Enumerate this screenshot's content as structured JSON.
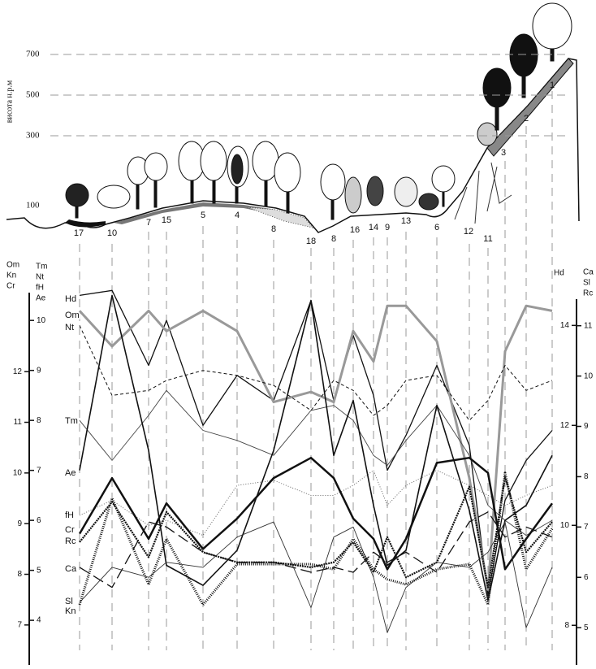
{
  "chart_data": {
    "type": "line",
    "elevation": {
      "label": "висота н.р.м",
      "ticks": [
        700,
        500,
        300,
        100
      ]
    },
    "categories": [
      "17",
      "10",
      "7",
      "15",
      "5",
      "4",
      "8",
      "18",
      "8",
      "16",
      "14",
      "9",
      "13",
      "6",
      "12",
      "11",
      "3",
      "2",
      "1"
    ],
    "axes": [
      {
        "names": [
          "Om",
          "Kn",
          "Cr"
        ],
        "ylim": [
          6.5,
          13.8
        ],
        "yticks": [
          12,
          11,
          10,
          9,
          8,
          7
        ]
      },
      {
        "names": [
          "Tm",
          "Nt",
          "fH",
          "Ae"
        ],
        "ylim": [
          3.4,
          10.8
        ],
        "yticks": [
          10,
          9,
          8,
          7,
          6,
          5,
          4
        ]
      },
      {
        "names": [
          "Hd"
        ],
        "ylim": [
          7.5,
          14.9
        ],
        "yticks": [
          14,
          12,
          10,
          8
        ]
      },
      {
        "names": [
          "Ca",
          "Sl",
          "Rc"
        ],
        "ylim": [
          4.55,
          11.9
        ],
        "yticks": [
          11,
          10,
          9,
          8,
          7,
          6,
          5
        ]
      }
    ],
    "series": [
      {
        "name": "Hd",
        "axis": 2,
        "color": "#111111",
        "width": 1.3,
        "dash": "none",
        "values": [
          14.6,
          14.7,
          13.2,
          14.1,
          12.0,
          13.0,
          12.5,
          14.5,
          12.5,
          13.8,
          12.6,
          11.1,
          11.8,
          13.2,
          11.6,
          8.6,
          10.5,
          11.3,
          11.9
        ]
      },
      {
        "name": "Om",
        "axis": 0,
        "color": "#999999",
        "width": 3,
        "dash": "none",
        "values": [
          13.2,
          12.5,
          13.2,
          12.8,
          13.2,
          12.8,
          11.4,
          11.6,
          11.4,
          12.8,
          12.2,
          13.3,
          13.3,
          12.6,
          9.9,
          7.7,
          12.4,
          13.3,
          13.2
        ]
      },
      {
        "name": "Nt",
        "axis": 1,
        "color": "#111111",
        "width": 1,
        "dash": "4 3",
        "values": [
          9.9,
          8.5,
          8.6,
          8.8,
          9.0,
          8.9,
          8.7,
          8.2,
          8.8,
          8.6,
          8.1,
          8.3,
          8.8,
          8.9,
          8.0,
          8.4,
          9.1,
          8.6,
          8.8
        ]
      },
      {
        "name": "Tm",
        "axis": 1,
        "color": "#444444",
        "width": 0.9,
        "dash": "none",
        "values": [
          8.0,
          7.2,
          8.1,
          8.6,
          7.8,
          7.6,
          7.3,
          8.2,
          8.3,
          8.0,
          7.3,
          7.1,
          7.6,
          8.3,
          7.3,
          6.3,
          6.0,
          5.7,
          6.0
        ]
      },
      {
        "name": "Ae",
        "axis": 1,
        "color": "#111111",
        "width": 1.6,
        "dash": "none",
        "values": [
          7.0,
          10.5,
          7.4,
          5.1,
          4.7,
          5.4,
          7.4,
          10.4,
          7.3,
          8.4,
          6.3,
          5.1,
          5.4,
          8.3,
          6.2,
          4.4,
          6.0,
          6.3,
          7.3
        ]
      },
      {
        "name": "fH",
        "axis": 1,
        "color": "#555555",
        "width": 0.9,
        "dash": "1 2",
        "values": [
          6.1,
          6.4,
          5.9,
          6.0,
          5.7,
          6.7,
          6.8,
          6.5,
          6.5,
          6.7,
          7.0,
          6.3,
          6.7,
          7.0,
          6.7,
          6.5,
          6.3,
          6.5,
          6.7
        ]
      },
      {
        "name": "Cr",
        "axis": 0,
        "color": "#111111",
        "width": 2.5,
        "dash": "none",
        "values": [
          8.8,
          9.9,
          8.7,
          9.4,
          8.5,
          9.1,
          9.9,
          10.3,
          9.9,
          9.1,
          8.7,
          8.1,
          8.7,
          10.2,
          10.3,
          10.0,
          8.1,
          8.7,
          9.4
        ]
      },
      {
        "name": "Rc",
        "axis": 3,
        "color": "#111111",
        "width": 2.2,
        "dash": "2 1",
        "values": [
          6.7,
          7.5,
          6.4,
          7.3,
          6.5,
          6.3,
          6.3,
          6.2,
          6.3,
          6.7,
          6.1,
          6.8,
          6.0,
          6.3,
          7.8,
          5.8,
          8.0,
          6.5,
          7.1
        ]
      },
      {
        "name": "Ca",
        "axis": 3,
        "color": "#111111",
        "width": 1.3,
        "dash": "14 6",
        "values": [
          6.2,
          5.8,
          7.1,
          7.0,
          6.5,
          6.3,
          6.3,
          6.1,
          6.2,
          6.1,
          6.5,
          6.3,
          6.5,
          6.1,
          7.1,
          7.3,
          6.8,
          7.0,
          6.8
        ]
      },
      {
        "name": "Sl",
        "axis": 3,
        "color": "#333333",
        "width": 0.9,
        "dash": "none",
        "values": [
          5.5,
          6.2,
          6.0,
          6.3,
          6.2,
          6.8,
          7.1,
          5.4,
          6.8,
          7.0,
          6.0,
          4.9,
          5.8,
          6.3,
          6.2,
          6.5,
          7.1,
          5.0,
          6.2
        ]
      },
      {
        "name": "Kn",
        "axis": 0,
        "color": "#111111",
        "width": 3,
        "dash": "1 1.5",
        "values": [
          7.4,
          9.5,
          7.8,
          8.7,
          7.4,
          8.2,
          8.2,
          8.2,
          8.1,
          8.7,
          8.1,
          7.9,
          7.8,
          8.1,
          8.2,
          7.4,
          10.0,
          8.1,
          8.9
        ]
      }
    ]
  }
}
